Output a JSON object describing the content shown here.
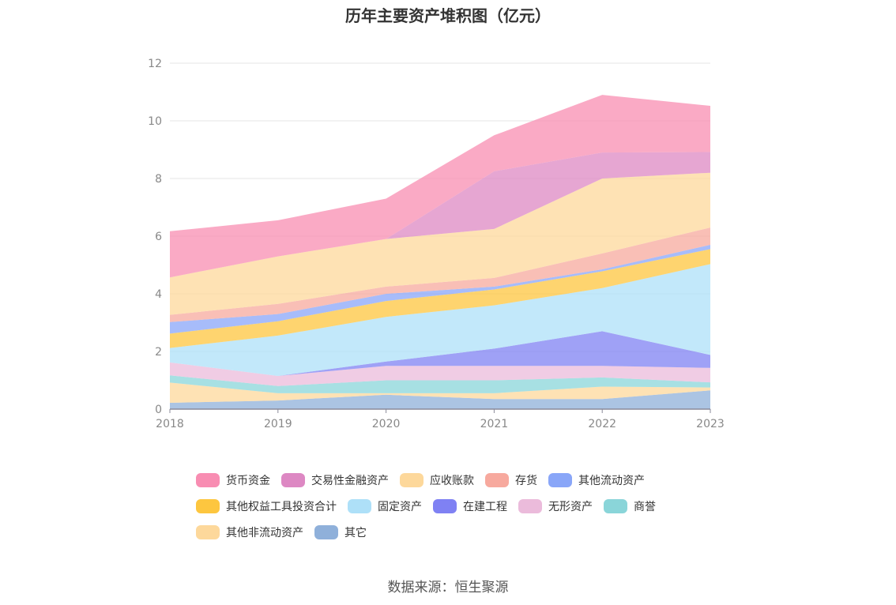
{
  "source": "数据来源：恒生聚源",
  "chart_data": {
    "type": "area",
    "stacked": true,
    "title": "历年主要资产堆积图（亿元）",
    "x": [
      "2018",
      "2019",
      "2020",
      "2021",
      "2022",
      "2023"
    ],
    "ylim": [
      0,
      12
    ],
    "yticks": [
      "0",
      "2",
      "4",
      "6",
      "8",
      "10",
      "12"
    ],
    "grid": true,
    "legend_position": "bottom",
    "series": [
      {
        "name": "其它",
        "color": "#8fb0da",
        "values": [
          0.22,
          0.3,
          0.5,
          0.35,
          0.35,
          0.65
        ]
      },
      {
        "name": "其他非流动资产",
        "color": "#fdd89b",
        "values": [
          0.7,
          0.25,
          0.05,
          0.2,
          0.43,
          0.1
        ]
      },
      {
        "name": "商誉",
        "color": "#8ad5d9",
        "values": [
          0.25,
          0.25,
          0.45,
          0.45,
          0.32,
          0.18
        ]
      },
      {
        "name": "无形资产",
        "color": "#ebbbdb",
        "values": [
          0.45,
          0.35,
          0.5,
          0.5,
          0.4,
          0.5
        ]
      },
      {
        "name": "在建工程",
        "color": "#7f81f3",
        "values": [
          0.0,
          0.0,
          0.15,
          0.6,
          1.2,
          0.45
        ]
      },
      {
        "name": "固定资产",
        "color": "#aee0f8",
        "values": [
          0.5,
          1.4,
          1.55,
          1.5,
          1.5,
          3.15
        ]
      },
      {
        "name": "其他权益工具投资合计",
        "color": "#fdc63f",
        "values": [
          0.5,
          0.5,
          0.55,
          0.55,
          0.58,
          0.52
        ]
      },
      {
        "name": "其他流动资产",
        "color": "#89a6f8",
        "values": [
          0.4,
          0.25,
          0.25,
          0.1,
          0.07,
          0.15
        ]
      },
      {
        "name": "存货",
        "color": "#f7a99e",
        "values": [
          0.25,
          0.35,
          0.25,
          0.3,
          0.55,
          0.6
        ]
      },
      {
        "name": "应收账款",
        "color": "#fdd89b",
        "values": [
          1.3,
          1.65,
          1.65,
          1.7,
          2.6,
          1.9
        ]
      },
      {
        "name": "交易性金融资产",
        "color": "#dd88c3",
        "values": [
          0.0,
          0.0,
          0.0,
          2.0,
          0.9,
          0.72
        ]
      },
      {
        "name": "货币资金",
        "color": "#f88db2",
        "values": [
          1.6,
          1.25,
          1.4,
          1.25,
          2.0,
          1.6
        ]
      }
    ]
  },
  "legend": [
    {
      "label": "货币资金",
      "color": "#f88db2"
    },
    {
      "label": "交易性金融资产",
      "color": "#dd88c3"
    },
    {
      "label": "应收账款",
      "color": "#fdd89b"
    },
    {
      "label": "存货",
      "color": "#f7a99e"
    },
    {
      "label": "其他流动资产",
      "color": "#89a6f8"
    },
    {
      "label": "其他权益工具投资合计",
      "color": "#fdc63f"
    },
    {
      "label": "固定资产",
      "color": "#aee0f8"
    },
    {
      "label": "在建工程",
      "color": "#7f81f3"
    },
    {
      "label": "无形资产",
      "color": "#ebbbdb"
    },
    {
      "label": "商誉",
      "color": "#8ad5d9"
    },
    {
      "label": "其他非流动资产",
      "color": "#fdd89b"
    },
    {
      "label": "其它",
      "color": "#8fb0da"
    }
  ]
}
